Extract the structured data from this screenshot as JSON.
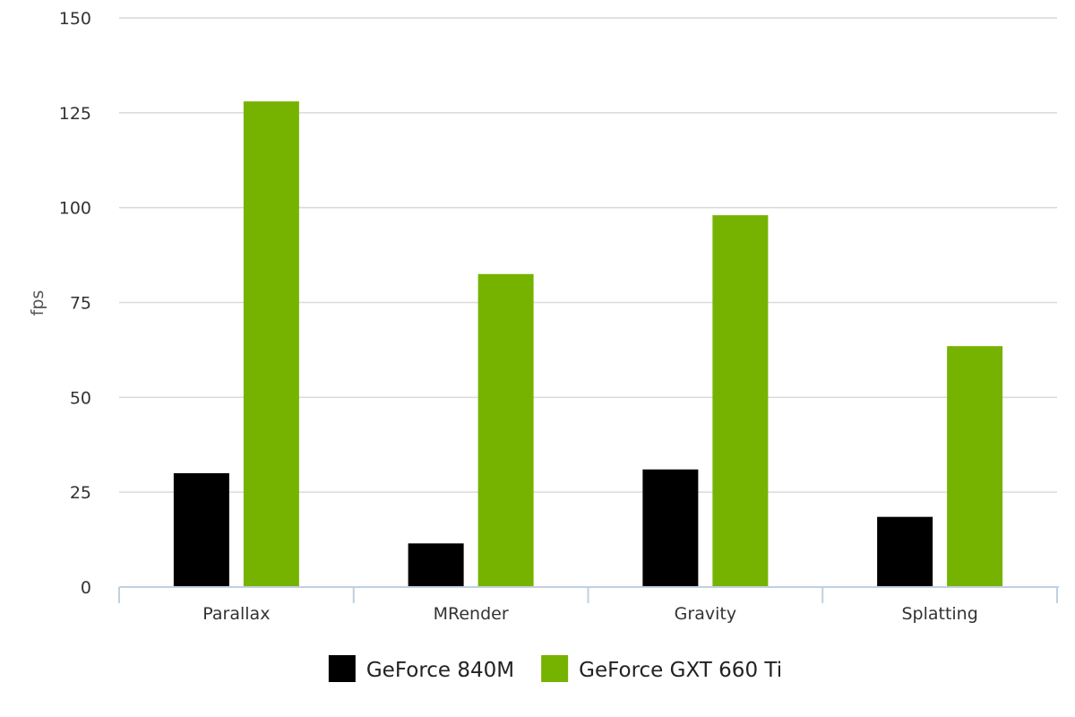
{
  "chart_data": {
    "type": "bar",
    "categories": [
      "Parallax",
      "MRender",
      "Gravity",
      "Splatting"
    ],
    "series": [
      {
        "name": "GeForce 840M",
        "color": "#000000",
        "values": [
          30,
          11.5,
          31,
          18.5
        ]
      },
      {
        "name": "GeForce GXT 660 Ti",
        "color": "#76b300",
        "values": [
          128,
          82.5,
          98,
          63.5
        ]
      }
    ],
    "xlabel": "",
    "ylabel": "fps",
    "ylim": [
      0,
      150
    ],
    "yticks": [
      0,
      25,
      50,
      75,
      100,
      125,
      150
    ],
    "grid": true,
    "legend_position": "bottom-center"
  }
}
